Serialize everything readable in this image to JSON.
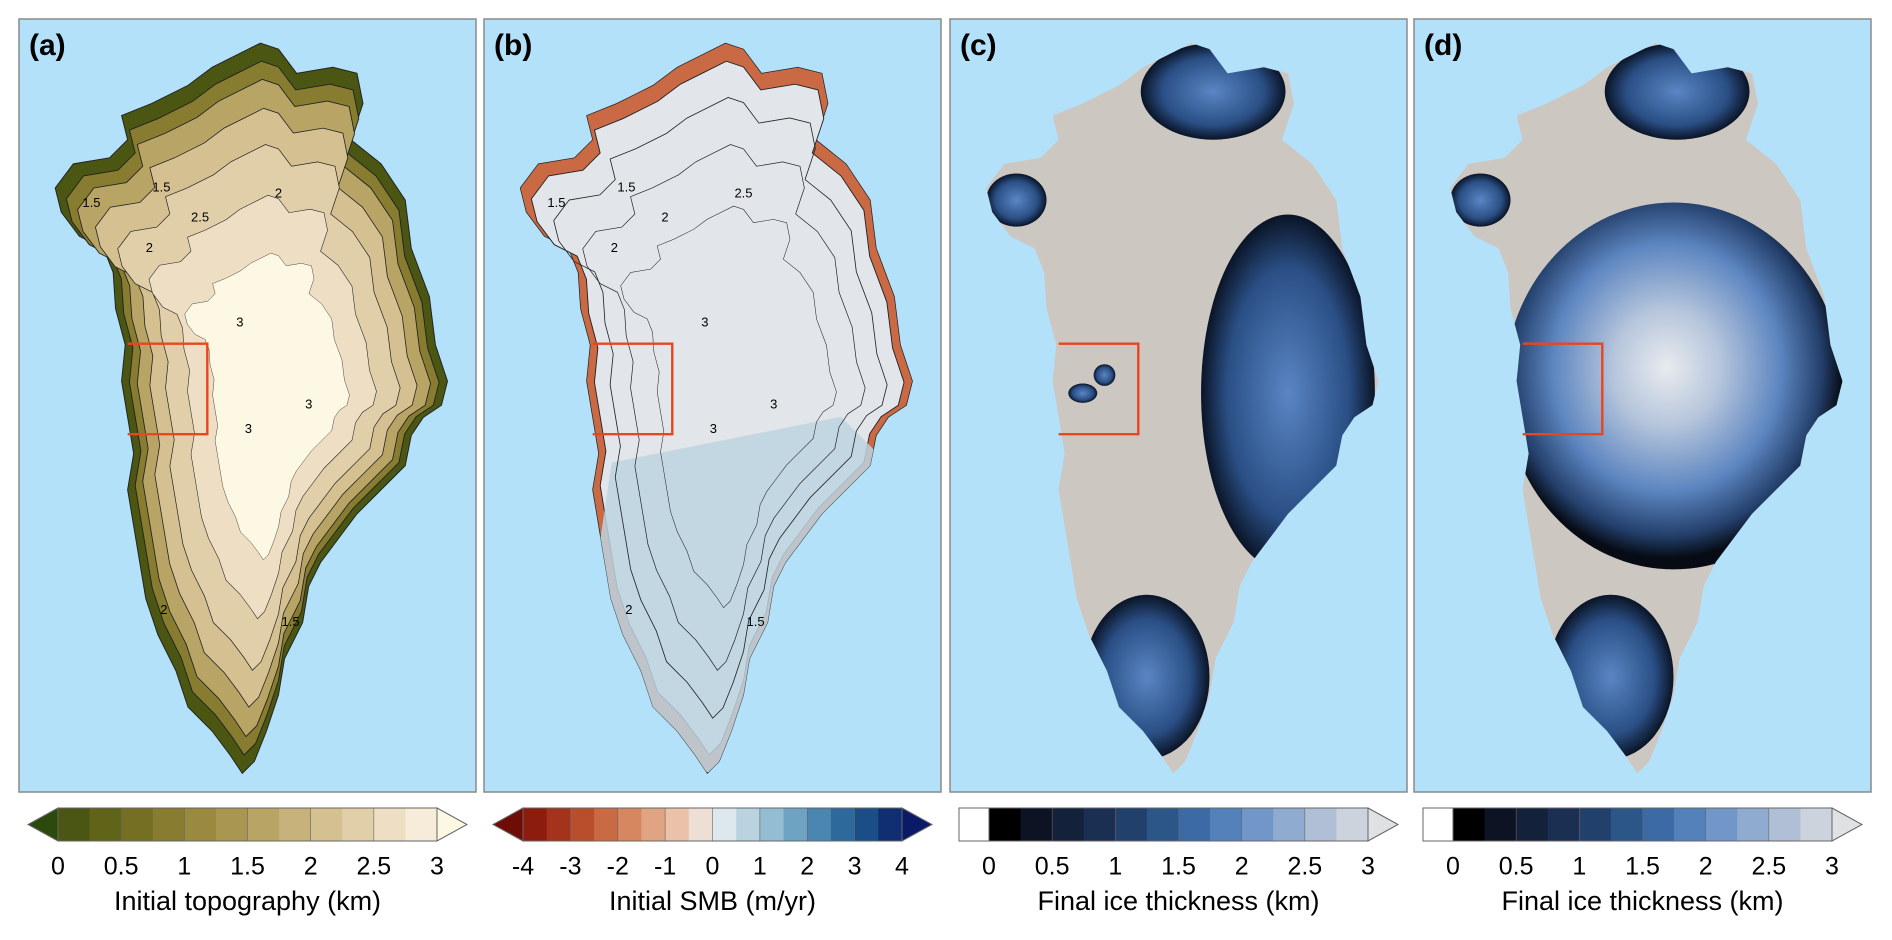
{
  "panels": [
    {
      "label": "(a)",
      "contour_labels": [
        "1.5",
        "1.5",
        "2",
        "2",
        "2.5",
        "3",
        "3",
        "3",
        "2",
        "1.5"
      ],
      "colorbar": {
        "title": "Initial topography (km)",
        "lim": [
          0,
          3
        ],
        "ticks": [
          0,
          0.5,
          1,
          1.5,
          2,
          2.5,
          3
        ],
        "under_color": "#2c4a0c",
        "under_shape": "triangle",
        "over_color": "#fdf8e4",
        "colors": [
          "#4a5612",
          "#5f6419",
          "#746f23",
          "#877c30",
          "#998a40",
          "#a99751",
          "#b8a565",
          "#c6b27a",
          "#d4c091",
          "#e1cfaa",
          "#eedec4",
          "#f7ecd9"
        ]
      }
    },
    {
      "label": "(b)",
      "contour_labels": [
        "1.5",
        "1.5",
        "2",
        "2.5",
        "2",
        "3",
        "3",
        "3",
        "2",
        "1.5"
      ],
      "colorbar": {
        "title": "Initial SMB (m/yr)",
        "lim": [
          -4,
          4
        ],
        "ticks": [
          -4,
          -3,
          -2,
          -1,
          0,
          1,
          2,
          3,
          4
        ],
        "under_color": "#6e0c05",
        "under_shape": "triangle",
        "over_color": "#0a1a66",
        "colors": [
          "#8c1c0e",
          "#a3331a",
          "#b84e2c",
          "#c96a45",
          "#d6875f",
          "#e0a482",
          "#eac2a9",
          "#eedfd5",
          "#dce7ee",
          "#b9d3e1",
          "#94bcd2",
          "#6ea3c2",
          "#4a86b0",
          "#2e699c",
          "#1b4d87",
          "#102f72"
        ]
      }
    },
    {
      "label": "(c)",
      "colorbar": {
        "title": "Final ice thickness (km)",
        "lim": [
          0,
          3
        ],
        "ticks": [
          0,
          0.5,
          1,
          1.5,
          2,
          2.5,
          3
        ],
        "under_color": "#ffffff",
        "under_shape": "box",
        "over_color": "#dfe1e4",
        "colors": [
          "#000000",
          "#0c1424",
          "#14213a",
          "#1b2f52",
          "#22406c",
          "#2c5588",
          "#3b6aa5",
          "#5581bb",
          "#7196c8",
          "#90abd0",
          "#b0bfd6",
          "#cdd3dc"
        ]
      }
    },
    {
      "label": "(d)",
      "colorbar": {
        "title": "Final ice thickness (km)",
        "lim": [
          0,
          3
        ],
        "ticks": [
          0,
          0.5,
          1,
          1.5,
          2,
          2.5,
          3
        ],
        "under_color": "#ffffff",
        "under_shape": "box",
        "over_color": "#dfe1e4",
        "colors": [
          "#000000",
          "#0c1424",
          "#14213a",
          "#1b2f52",
          "#22406c",
          "#2c5588",
          "#3b6aa5",
          "#5581bb",
          "#7196c8",
          "#90abd0",
          "#b0bfd6",
          "#cdd3dc"
        ]
      }
    }
  ]
}
